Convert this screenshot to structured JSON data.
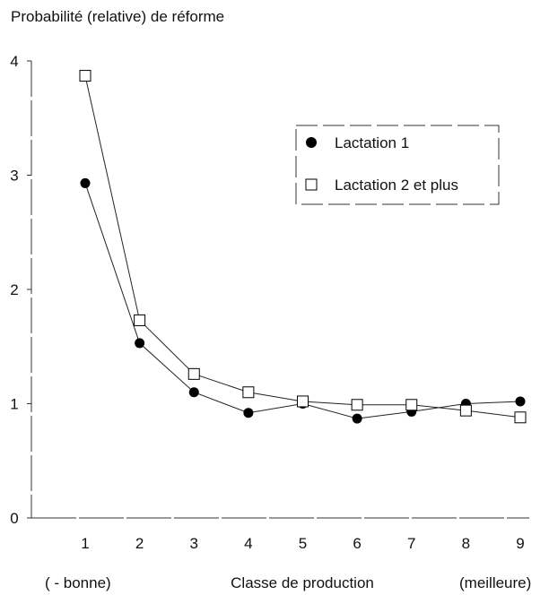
{
  "chart_data": {
    "type": "line",
    "title": "Probabilité (relative) de réforme",
    "xlabel": "Classe de production",
    "xlabel_left": "( - bonne)",
    "xlabel_right": "(meilleure)",
    "x": [
      1,
      2,
      3,
      4,
      5,
      6,
      7,
      8,
      9
    ],
    "ylim": [
      0,
      4
    ],
    "yticks": [
      0,
      1,
      2,
      3,
      4
    ],
    "grid": false,
    "legend_position": "top-right",
    "series": [
      {
        "name": "Lactation 1",
        "marker": "filled-circle",
        "color": "#000000",
        "values": [
          2.93,
          1.53,
          1.1,
          0.92,
          1.0,
          0.87,
          0.93,
          1.0,
          1.02
        ]
      },
      {
        "name": "Lactation 2 et plus",
        "marker": "open-square",
        "color": "#000000",
        "values": [
          3.87,
          1.73,
          1.26,
          1.1,
          1.02,
          0.99,
          0.99,
          0.94,
          0.88
        ]
      }
    ]
  }
}
